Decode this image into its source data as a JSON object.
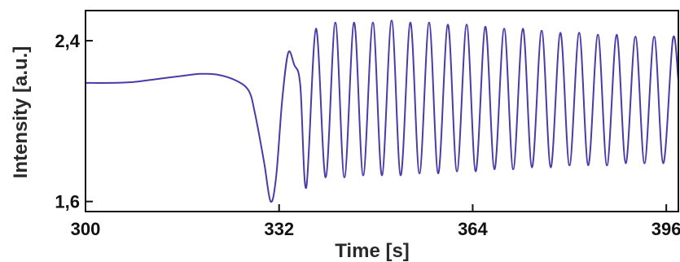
{
  "chart_data": {
    "type": "line",
    "title": "",
    "xlabel": "Time [s]",
    "ylabel": "Intensity [a.u.]",
    "xlim": [
      300,
      398
    ],
    "ylim": [
      1.55,
      2.55
    ],
    "x_ticks": [
      300,
      332,
      364,
      396
    ],
    "x_tick_labels": [
      "300",
      "332",
      "364",
      "396"
    ],
    "y_ticks": [
      1.6,
      2.4
    ],
    "y_tick_labels": [
      "1,6",
      "2,4"
    ],
    "grid": false,
    "legend": "none",
    "line_color": "#4b3aa8",
    "series": [
      {
        "points": [
          [
            300,
            2.19
          ],
          [
            304,
            2.19
          ],
          [
            308,
            2.195
          ],
          [
            312,
            2.21
          ],
          [
            316,
            2.225
          ],
          [
            319,
            2.235
          ],
          [
            322,
            2.23
          ],
          [
            325,
            2.2
          ],
          [
            327,
            2.15
          ],
          [
            328,
            2.04
          ],
          [
            329.5,
            1.8
          ],
          [
            330.6,
            1.6
          ],
          [
            331.5,
            1.72
          ],
          [
            332.5,
            2.1
          ],
          [
            333.5,
            2.34
          ],
          [
            334.5,
            2.28
          ],
          [
            335.5,
            2.18
          ],
          [
            336.5,
            1.67
          ],
          [
            338.1,
            2.46
          ],
          [
            339.7,
            1.72
          ],
          [
            341.3,
            2.49
          ],
          [
            342.8,
            1.72
          ],
          [
            344.4,
            2.49
          ],
          [
            345.9,
            1.73
          ],
          [
            347.5,
            2.49
          ],
          [
            349.0,
            1.73
          ],
          [
            350.6,
            2.5
          ],
          [
            352.1,
            1.73
          ],
          [
            353.7,
            2.49
          ],
          [
            355.2,
            1.74
          ],
          [
            356.8,
            2.49
          ],
          [
            358.3,
            1.74
          ],
          [
            359.9,
            2.48
          ],
          [
            361.4,
            1.75
          ],
          [
            363.0,
            2.48
          ],
          [
            364.5,
            1.75
          ],
          [
            366.1,
            2.47
          ],
          [
            367.6,
            1.76
          ],
          [
            369.2,
            2.46
          ],
          [
            370.7,
            1.76
          ],
          [
            372.3,
            2.46
          ],
          [
            373.8,
            1.77
          ],
          [
            375.4,
            2.45
          ],
          [
            376.9,
            1.77
          ],
          [
            378.5,
            2.44
          ],
          [
            380.0,
            1.78
          ],
          [
            381.6,
            2.44
          ],
          [
            383.1,
            1.78
          ],
          [
            384.7,
            2.43
          ],
          [
            386.2,
            1.78
          ],
          [
            387.8,
            2.43
          ],
          [
            389.3,
            1.79
          ],
          [
            390.9,
            2.42
          ],
          [
            392.4,
            1.79
          ],
          [
            394.0,
            2.42
          ],
          [
            395.5,
            1.79
          ],
          [
            397.1,
            2.41
          ],
          [
            398,
            2.2
          ]
        ]
      }
    ]
  }
}
